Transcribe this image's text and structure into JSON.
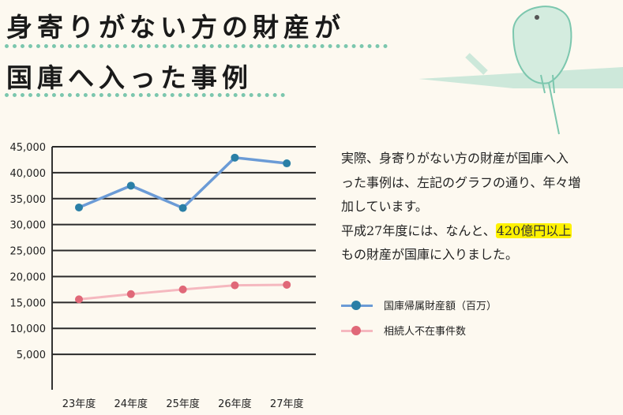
{
  "title_lines": [
    "身寄りがない方の財産が",
    "国庫へ入った事例"
  ],
  "description": {
    "line1": "実際、身寄りがない方の財産が国庫へ入",
    "line2": "った事例は、左記のグラフの通り、年々増",
    "line3": "加しています。",
    "line4_pre": "平成27年度には、なんと、",
    "line4_highlight": "420億円以上",
    "line5": "もの財産が国庫に入りました。"
  },
  "colors": {
    "accent": "#7cc7ae",
    "highlight": "#fff200",
    "series1": "#6b9bd6",
    "series1_marker": "#2a7fa6",
    "series2": "#f5b8bf",
    "series2_marker": "#e06878"
  },
  "chart_data": {
    "type": "line",
    "categories": [
      "23年度",
      "24年度",
      "25年度",
      "26年度",
      "27年度"
    ],
    "series": [
      {
        "name": "国庫帰属財産額（百万）",
        "values": [
          33300,
          37500,
          33200,
          42900,
          41800
        ]
      },
      {
        "name": "相続人不在事件数",
        "values": [
          15600,
          16600,
          17500,
          18300,
          18400
        ]
      }
    ],
    "yticks": [
      "5,000",
      "10,000",
      "15,000",
      "20,000",
      "25,000",
      "30,000",
      "35,000",
      "40,000",
      "45,000"
    ],
    "ylim": [
      0,
      45000
    ],
    "grid": true,
    "legend": "right"
  }
}
